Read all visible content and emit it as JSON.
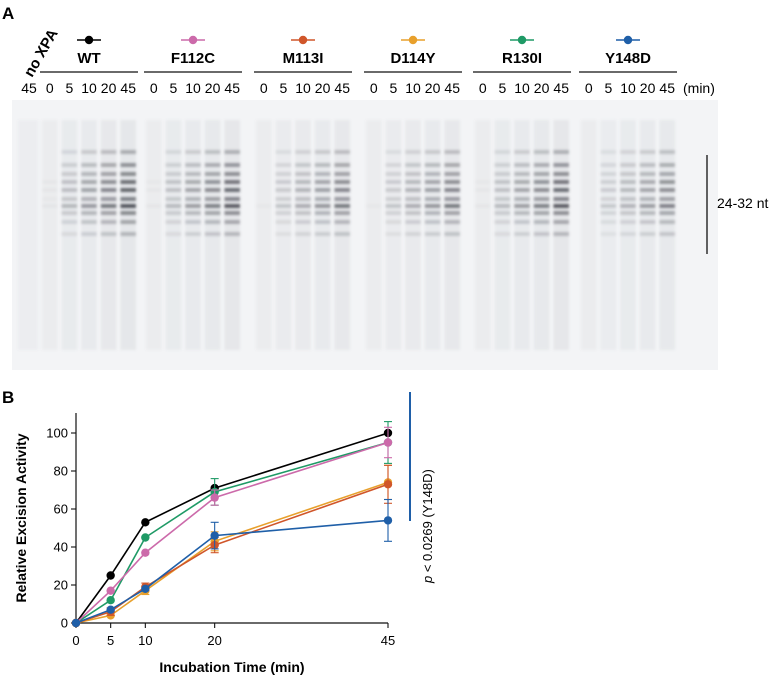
{
  "panel_a": {
    "label": "A",
    "no_xpa": {
      "label": "no XPA",
      "time": "45"
    },
    "mutants": [
      {
        "name": "WT",
        "color": "#000000",
        "times": [
          "0",
          "5",
          "10",
          "20",
          "45"
        ]
      },
      {
        "name": "F112C",
        "color": "#cc6aaa",
        "times": [
          "0",
          "5",
          "10",
          "20",
          "45"
        ]
      },
      {
        "name": "M113I",
        "color": "#d0562a",
        "times": [
          "0",
          "5",
          "10",
          "20",
          "45"
        ]
      },
      {
        "name": "D114Y",
        "color": "#e8a02c",
        "times": [
          "0",
          "5",
          "10",
          "20",
          "45"
        ]
      },
      {
        "name": "R130I",
        "color": "#1f9a66",
        "times": [
          "0",
          "5",
          "10",
          "20",
          "45"
        ]
      },
      {
        "name": "Y148D",
        "color": "#1f5fa8",
        "times": [
          "0",
          "5",
          "10",
          "20",
          "45"
        ]
      }
    ],
    "unit_label": "(min)",
    "size_label": "24-32 nt"
  },
  "panel_b": {
    "label": "B"
  },
  "chart_data": {
    "type": "line",
    "x": [
      0,
      5,
      10,
      20,
      45
    ],
    "xlabel": "Incubation Time (min)",
    "ylabel": "Relative Excision Activity",
    "xlim": [
      0,
      45
    ],
    "ylim": [
      0,
      100
    ],
    "xticks": [
      0,
      5,
      10,
      20,
      45
    ],
    "yticks": [
      0,
      20,
      40,
      60,
      80,
      100
    ],
    "series": [
      {
        "name": "WT",
        "color": "#000000",
        "values": [
          0,
          25,
          53,
          71,
          100
        ],
        "errors": [
          0,
          0,
          0,
          0,
          0
        ]
      },
      {
        "name": "R130I",
        "color": "#1f9a66",
        "values": [
          0,
          12,
          45,
          69,
          95
        ],
        "errors": [
          0,
          0,
          0,
          7,
          11
        ]
      },
      {
        "name": "F112C",
        "color": "#cc6aaa",
        "values": [
          0,
          17,
          37,
          66,
          95
        ],
        "errors": [
          0,
          0,
          0,
          4,
          8
        ]
      },
      {
        "name": "D114Y",
        "color": "#e8a02c",
        "values": [
          0,
          4,
          17,
          43,
          74
        ],
        "errors": [
          0,
          0,
          2,
          5,
          9
        ]
      },
      {
        "name": "M113I",
        "color": "#d0562a",
        "values": [
          0,
          6,
          19,
          41,
          73
        ],
        "errors": [
          0,
          2,
          2,
          4,
          10
        ]
      },
      {
        "name": "Y148D",
        "color": "#1f5fa8",
        "values": [
          0,
          7,
          18,
          46,
          54
        ],
        "errors": [
          0,
          0,
          0,
          7,
          11
        ]
      }
    ],
    "significance": {
      "p_symbol": "p",
      "text": " < 0.0269 (Y148D)",
      "color": "#1f5fa8"
    }
  }
}
